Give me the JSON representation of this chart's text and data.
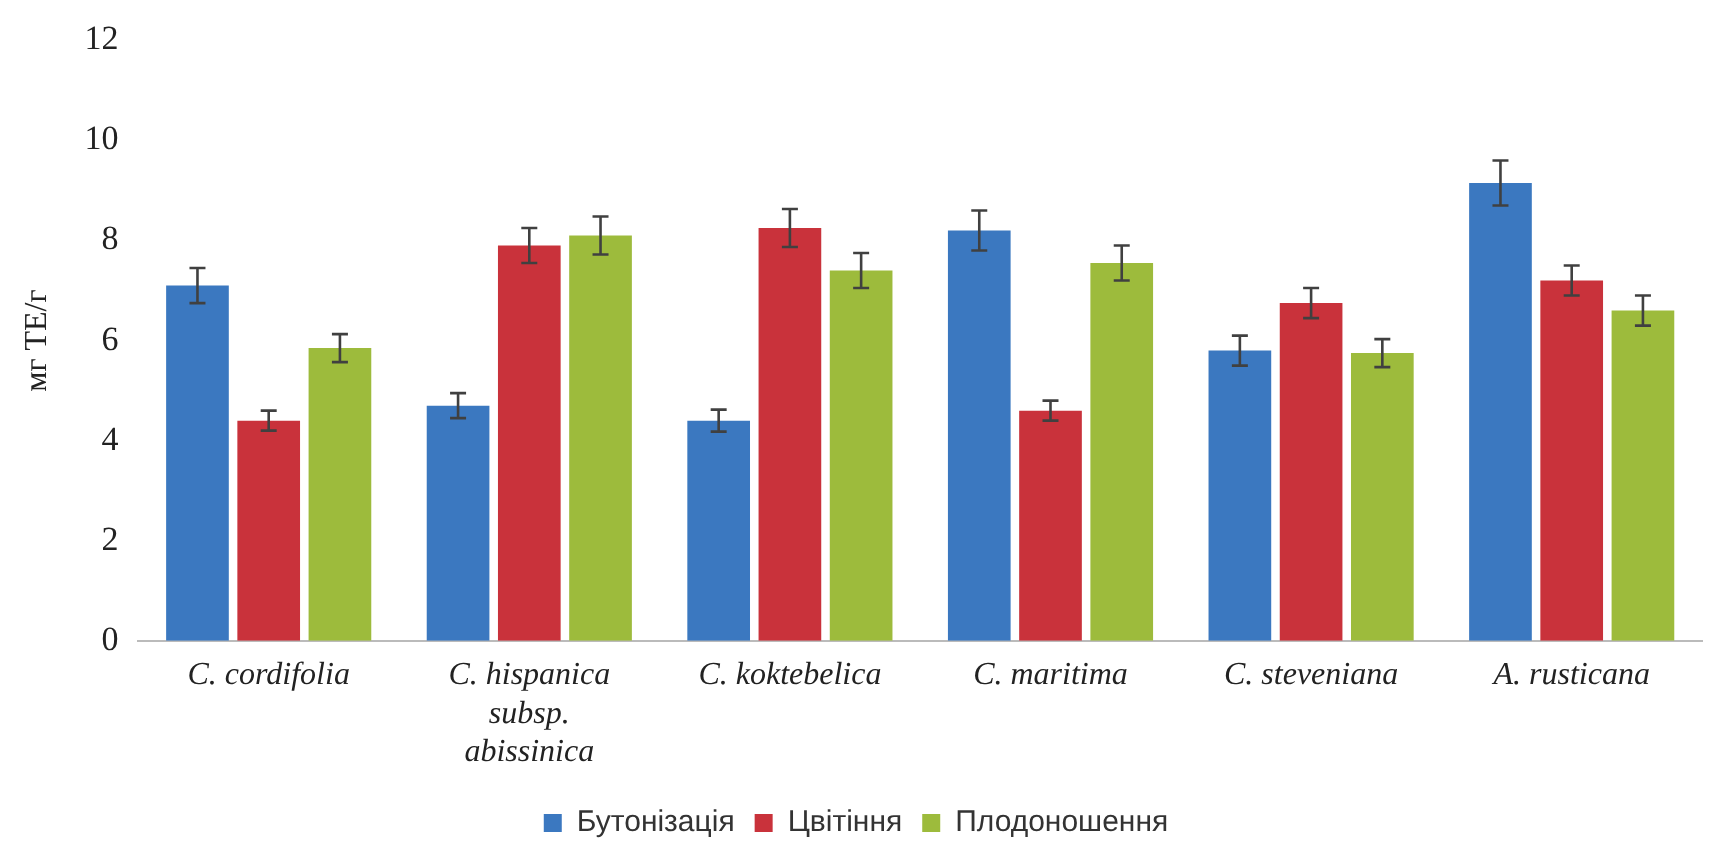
{
  "chart_data": {
    "type": "bar",
    "ylabel": "мг ТЕ/г",
    "categories": [
      "C. cordifolia",
      "C. hispanica subsp. abissinica",
      "C. koktebelica",
      "C. maritima",
      "C. steveniana",
      "A. rusticana"
    ],
    "series": [
      {
        "name": "Бутонізація",
        "color": "#3b78c0",
        "values": [
          7.1,
          4.7,
          4.4,
          8.2,
          5.8,
          9.15
        ],
        "errors": [
          0.35,
          0.25,
          0.22,
          0.4,
          0.3,
          0.45
        ]
      },
      {
        "name": "Цвітіння",
        "color": "#c9323b",
        "values": [
          4.4,
          7.9,
          8.25,
          4.6,
          6.75,
          7.2
        ],
        "errors": [
          0.2,
          0.35,
          0.38,
          0.2,
          0.3,
          0.3
        ]
      },
      {
        "name": "Плодоношення",
        "color": "#9dbb3c",
        "values": [
          5.85,
          8.1,
          7.4,
          7.55,
          5.75,
          6.6
        ],
        "errors": [
          0.28,
          0.38,
          0.35,
          0.35,
          0.28,
          0.3
        ]
      }
    ],
    "ylim": [
      0,
      12
    ],
    "yticks": [
      0,
      2,
      4,
      6,
      8,
      10,
      12
    ],
    "grid": false,
    "legend": "bottom"
  }
}
